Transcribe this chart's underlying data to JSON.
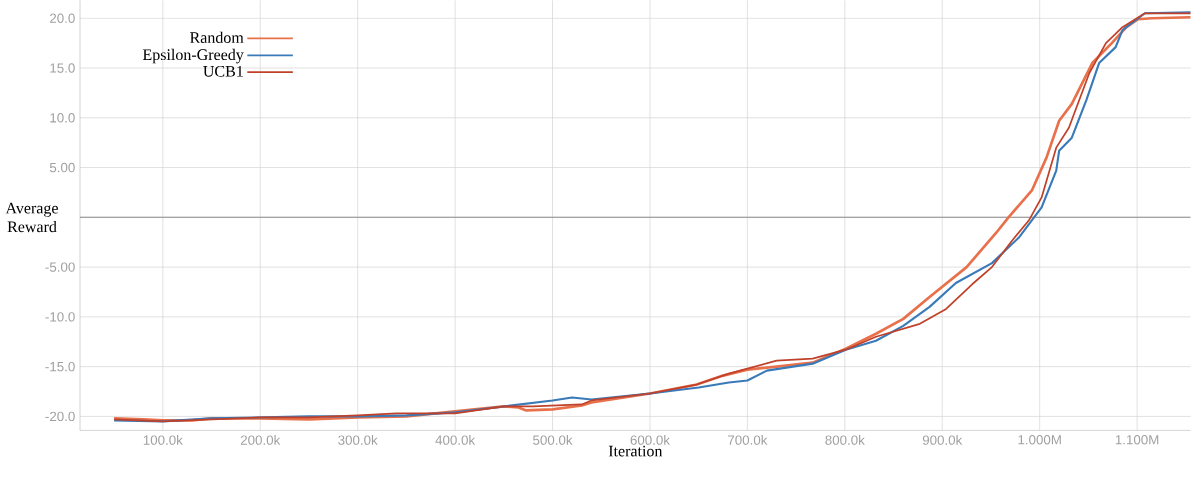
{
  "chart_data": {
    "type": "line",
    "xlabel": "Iteration",
    "ylabel": "Average Reward",
    "xlim": [
      15000,
      1155000
    ],
    "ylim": [
      -21.4,
      21.8
    ],
    "xticks": [
      {
        "value": 100000,
        "label": "100.0k"
      },
      {
        "value": 200000,
        "label": "200.0k"
      },
      {
        "value": 300000,
        "label": "300.0k"
      },
      {
        "value": 400000,
        "label": "400.0k"
      },
      {
        "value": 500000,
        "label": "500.0k"
      },
      {
        "value": 600000,
        "label": "600.0k"
      },
      {
        "value": 700000,
        "label": "700.0k"
      },
      {
        "value": 800000,
        "label": "800.0k"
      },
      {
        "value": 900000,
        "label": "900.0k"
      },
      {
        "value": 1000000,
        "label": "1.000M"
      },
      {
        "value": 1100000,
        "label": "1.100M"
      }
    ],
    "yticks": [
      {
        "value": -20,
        "label": "-20.0"
      },
      {
        "value": -15,
        "label": "-15.0"
      },
      {
        "value": -10,
        "label": "-10.0"
      },
      {
        "value": -5,
        "label": "-5.00"
      },
      {
        "value": 0,
        "label": null
      },
      {
        "value": 5,
        "label": "5.00"
      },
      {
        "value": 10,
        "label": "10.0"
      },
      {
        "value": 15,
        "label": "15.0"
      },
      {
        "value": 20,
        "label": "20.0"
      }
    ],
    "grid": true,
    "legend": "top left",
    "marker": "none",
    "line_style": "solid",
    "ref_lines": [
      {
        "axis": "y",
        "value": 0,
        "color": "#8c8c8c"
      }
    ],
    "series": [
      {
        "name": "Random",
        "color": "#e8704a",
        "x": [
          50000,
          80000,
          100000,
          130000,
          150000,
          200000,
          250000,
          300000,
          350000,
          400000,
          450000,
          465000,
          473000,
          500000,
          530000,
          540000,
          600000,
          648000,
          675000,
          700000,
          730000,
          767000,
          801000,
          832000,
          860000,
          887000,
          925000,
          955000,
          968000,
          992000,
          1007000,
          1020000,
          1033000,
          1054000,
          1074000,
          1089000,
          1101000,
          1115000,
          1155000
        ],
        "values": [
          -20.2,
          -20.3,
          -20.4,
          -20.4,
          -20.2,
          -20.2,
          -20.3,
          -20.1,
          -20.0,
          -19.5,
          -19.0,
          -19.1,
          -19.4,
          -19.3,
          -18.9,
          -18.6,
          -17.7,
          -16.8,
          -15.9,
          -15.3,
          -15.0,
          -14.6,
          -13.2,
          -11.7,
          -10.2,
          -8.0,
          -5.0,
          -1.6,
          0,
          2.7,
          6.0,
          9.7,
          11.4,
          15.5,
          17.5,
          19.1,
          19.9,
          20.0,
          20.1
        ]
      },
      {
        "name": "Epsilon-Greedy",
        "color": "#3a7ab8",
        "x": [
          50000,
          100000,
          150000,
          200000,
          250000,
          300000,
          350000,
          400000,
          450000,
          500000,
          520000,
          540000,
          600000,
          650000,
          681000,
          700000,
          720000,
          767000,
          801000,
          832000,
          860000,
          887000,
          914000,
          951000,
          979000,
          1002000,
          1017000,
          1020000,
          1033000,
          1048000,
          1061000,
          1078000,
          1085000,
          1108000,
          1155000
        ],
        "values": [
          -20.4,
          -20.5,
          -20.2,
          -20.1,
          -20.0,
          -20.0,
          -19.9,
          -19.6,
          -19.0,
          -18.4,
          -18.1,
          -18.3,
          -17.7,
          -17.1,
          -16.6,
          -16.4,
          -15.4,
          -14.7,
          -13.3,
          -12.4,
          -10.9,
          -9.0,
          -6.6,
          -4.6,
          -2.0,
          1.0,
          4.7,
          6.7,
          8.0,
          11.8,
          15.5,
          17.1,
          18.8,
          20.5,
          20.6
        ]
      },
      {
        "name": "UCB1",
        "color": "#c0412a",
        "x": [
          50000,
          100000,
          150000,
          200000,
          250000,
          300000,
          340000,
          400000,
          450000,
          480000,
          530000,
          540000,
          600000,
          648000,
          681000,
          700000,
          730000,
          767000,
          801000,
          832000,
          877000,
          904000,
          931000,
          951000,
          972000,
          989000,
          1002000,
          1017000,
          1030000,
          1051000,
          1068000,
          1085000,
          1108000,
          1155000
        ],
        "values": [
          -20.3,
          -20.5,
          -20.3,
          -20.1,
          -20.1,
          -19.9,
          -19.7,
          -19.7,
          -19.0,
          -19.0,
          -18.8,
          -18.4,
          -17.7,
          -16.8,
          -15.7,
          -15.2,
          -14.4,
          -14.2,
          -13.3,
          -12.0,
          -10.7,
          -9.2,
          -6.7,
          -5.0,
          -2.3,
          -0.3,
          2.0,
          7.0,
          9.0,
          14.5,
          17.5,
          19.1,
          20.5,
          20.5
        ]
      }
    ]
  }
}
